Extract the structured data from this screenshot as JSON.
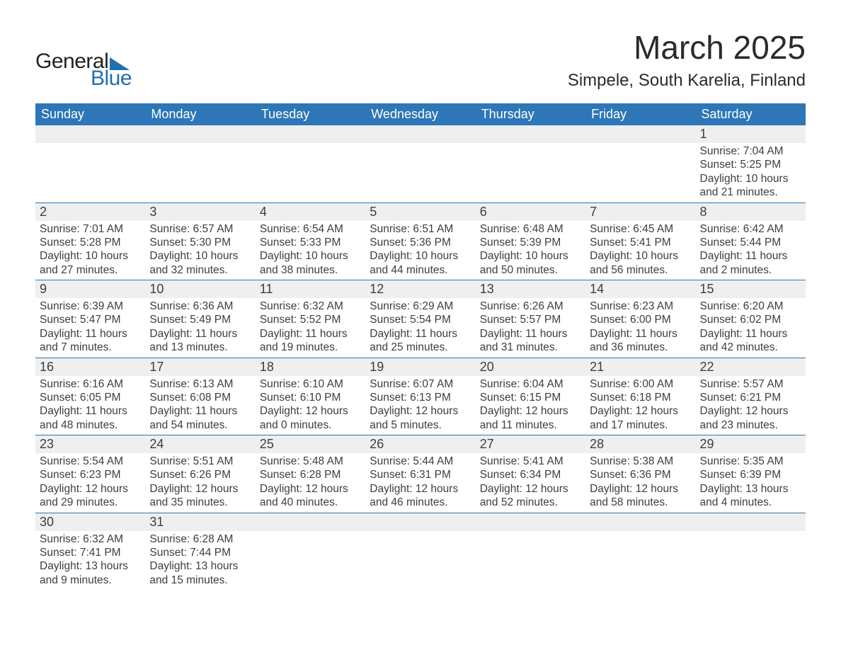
{
  "logo": {
    "word1": "General",
    "word2": "Blue",
    "accent_color": "#1f6fb2"
  },
  "title": "March 2025",
  "location": "Simpele, South Karelia, Finland",
  "header_bg": "#2d76b7",
  "header_fg": "#ffffff",
  "stripe_bg": "#efefef",
  "rule_color": "#2d76b7",
  "page_bg": "#ffffff",
  "text_color": "#3e3e3e",
  "weekdays": [
    "Sunday",
    "Monday",
    "Tuesday",
    "Wednesday",
    "Thursday",
    "Friday",
    "Saturday"
  ],
  "weeks": [
    [
      null,
      null,
      null,
      null,
      null,
      null,
      {
        "n": "1",
        "sunrise": "7:04 AM",
        "sunset": "5:25 PM",
        "day_h": "10",
        "day_m": "21"
      }
    ],
    [
      {
        "n": "2",
        "sunrise": "7:01 AM",
        "sunset": "5:28 PM",
        "day_h": "10",
        "day_m": "27"
      },
      {
        "n": "3",
        "sunrise": "6:57 AM",
        "sunset": "5:30 PM",
        "day_h": "10",
        "day_m": "32"
      },
      {
        "n": "4",
        "sunrise": "6:54 AM",
        "sunset": "5:33 PM",
        "day_h": "10",
        "day_m": "38"
      },
      {
        "n": "5",
        "sunrise": "6:51 AM",
        "sunset": "5:36 PM",
        "day_h": "10",
        "day_m": "44"
      },
      {
        "n": "6",
        "sunrise": "6:48 AM",
        "sunset": "5:39 PM",
        "day_h": "10",
        "day_m": "50"
      },
      {
        "n": "7",
        "sunrise": "6:45 AM",
        "sunset": "5:41 PM",
        "day_h": "10",
        "day_m": "56"
      },
      {
        "n": "8",
        "sunrise": "6:42 AM",
        "sunset": "5:44 PM",
        "day_h": "11",
        "day_m": "2"
      }
    ],
    [
      {
        "n": "9",
        "sunrise": "6:39 AM",
        "sunset": "5:47 PM",
        "day_h": "11",
        "day_m": "7"
      },
      {
        "n": "10",
        "sunrise": "6:36 AM",
        "sunset": "5:49 PM",
        "day_h": "11",
        "day_m": "13"
      },
      {
        "n": "11",
        "sunrise": "6:32 AM",
        "sunset": "5:52 PM",
        "day_h": "11",
        "day_m": "19"
      },
      {
        "n": "12",
        "sunrise": "6:29 AM",
        "sunset": "5:54 PM",
        "day_h": "11",
        "day_m": "25"
      },
      {
        "n": "13",
        "sunrise": "6:26 AM",
        "sunset": "5:57 PM",
        "day_h": "11",
        "day_m": "31"
      },
      {
        "n": "14",
        "sunrise": "6:23 AM",
        "sunset": "6:00 PM",
        "day_h": "11",
        "day_m": "36"
      },
      {
        "n": "15",
        "sunrise": "6:20 AM",
        "sunset": "6:02 PM",
        "day_h": "11",
        "day_m": "42"
      }
    ],
    [
      {
        "n": "16",
        "sunrise": "6:16 AM",
        "sunset": "6:05 PM",
        "day_h": "11",
        "day_m": "48"
      },
      {
        "n": "17",
        "sunrise": "6:13 AM",
        "sunset": "6:08 PM",
        "day_h": "11",
        "day_m": "54"
      },
      {
        "n": "18",
        "sunrise": "6:10 AM",
        "sunset": "6:10 PM",
        "day_h": "12",
        "day_m": "0"
      },
      {
        "n": "19",
        "sunrise": "6:07 AM",
        "sunset": "6:13 PM",
        "day_h": "12",
        "day_m": "5"
      },
      {
        "n": "20",
        "sunrise": "6:04 AM",
        "sunset": "6:15 PM",
        "day_h": "12",
        "day_m": "11"
      },
      {
        "n": "21",
        "sunrise": "6:00 AM",
        "sunset": "6:18 PM",
        "day_h": "12",
        "day_m": "17"
      },
      {
        "n": "22",
        "sunrise": "5:57 AM",
        "sunset": "6:21 PM",
        "day_h": "12",
        "day_m": "23"
      }
    ],
    [
      {
        "n": "23",
        "sunrise": "5:54 AM",
        "sunset": "6:23 PM",
        "day_h": "12",
        "day_m": "29"
      },
      {
        "n": "24",
        "sunrise": "5:51 AM",
        "sunset": "6:26 PM",
        "day_h": "12",
        "day_m": "35"
      },
      {
        "n": "25",
        "sunrise": "5:48 AM",
        "sunset": "6:28 PM",
        "day_h": "12",
        "day_m": "40"
      },
      {
        "n": "26",
        "sunrise": "5:44 AM",
        "sunset": "6:31 PM",
        "day_h": "12",
        "day_m": "46"
      },
      {
        "n": "27",
        "sunrise": "5:41 AM",
        "sunset": "6:34 PM",
        "day_h": "12",
        "day_m": "52"
      },
      {
        "n": "28",
        "sunrise": "5:38 AM",
        "sunset": "6:36 PM",
        "day_h": "12",
        "day_m": "58"
      },
      {
        "n": "29",
        "sunrise": "5:35 AM",
        "sunset": "6:39 PM",
        "day_h": "13",
        "day_m": "4"
      }
    ],
    [
      {
        "n": "30",
        "sunrise": "6:32 AM",
        "sunset": "7:41 PM",
        "day_h": "13",
        "day_m": "9"
      },
      {
        "n": "31",
        "sunrise": "6:28 AM",
        "sunset": "7:44 PM",
        "day_h": "13",
        "day_m": "15"
      },
      null,
      null,
      null,
      null,
      null
    ]
  ],
  "labels": {
    "sunrise": "Sunrise: ",
    "sunset": "Sunset: ",
    "daylight_prefix": "Daylight: ",
    "hours_word": " hours",
    "and_word": "and ",
    "minutes_word": " minutes."
  }
}
